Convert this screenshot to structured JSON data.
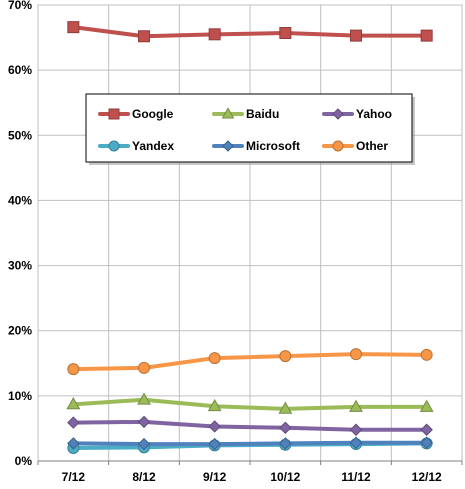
{
  "chart_data": {
    "type": "line",
    "categories": [
      "7/12",
      "8/12",
      "9/12",
      "10/12",
      "11/12",
      "12/12"
    ],
    "ylim": [
      0,
      70
    ],
    "y_ticks": [
      "0%",
      "10%",
      "20%",
      "30%",
      "40%",
      "50%",
      "60%",
      "70%"
    ],
    "y_tick_values": [
      0,
      10,
      20,
      30,
      40,
      50,
      60,
      70
    ],
    "grid": true,
    "legend_position": "upper-center",
    "series": [
      {
        "name": "Google",
        "color": "#c0504d",
        "marker": "square",
        "values": [
          66.6,
          65.2,
          65.5,
          65.7,
          65.3,
          65.3
        ]
      },
      {
        "name": "Baidu",
        "color": "#9bbb59",
        "marker": "triangle",
        "values": [
          8.7,
          9.4,
          8.4,
          8.0,
          8.3,
          8.3
        ]
      },
      {
        "name": "Yahoo",
        "color": "#8064a2",
        "marker": "diamond",
        "values": [
          5.9,
          6.0,
          5.3,
          5.1,
          4.8,
          4.8
        ]
      },
      {
        "name": "Yandex",
        "color": "#4bacc6",
        "marker": "circle",
        "values": [
          2.0,
          2.1,
          2.4,
          2.5,
          2.6,
          2.7
        ]
      },
      {
        "name": "Microsoft",
        "color": "#4f81bd",
        "marker": "diamond",
        "values": [
          2.7,
          2.6,
          2.6,
          2.7,
          2.8,
          2.8
        ]
      },
      {
        "name": "Other",
        "color": "#f79646",
        "marker": "circle",
        "values": [
          14.1,
          14.3,
          15.8,
          16.1,
          16.4,
          16.3
        ]
      }
    ]
  }
}
